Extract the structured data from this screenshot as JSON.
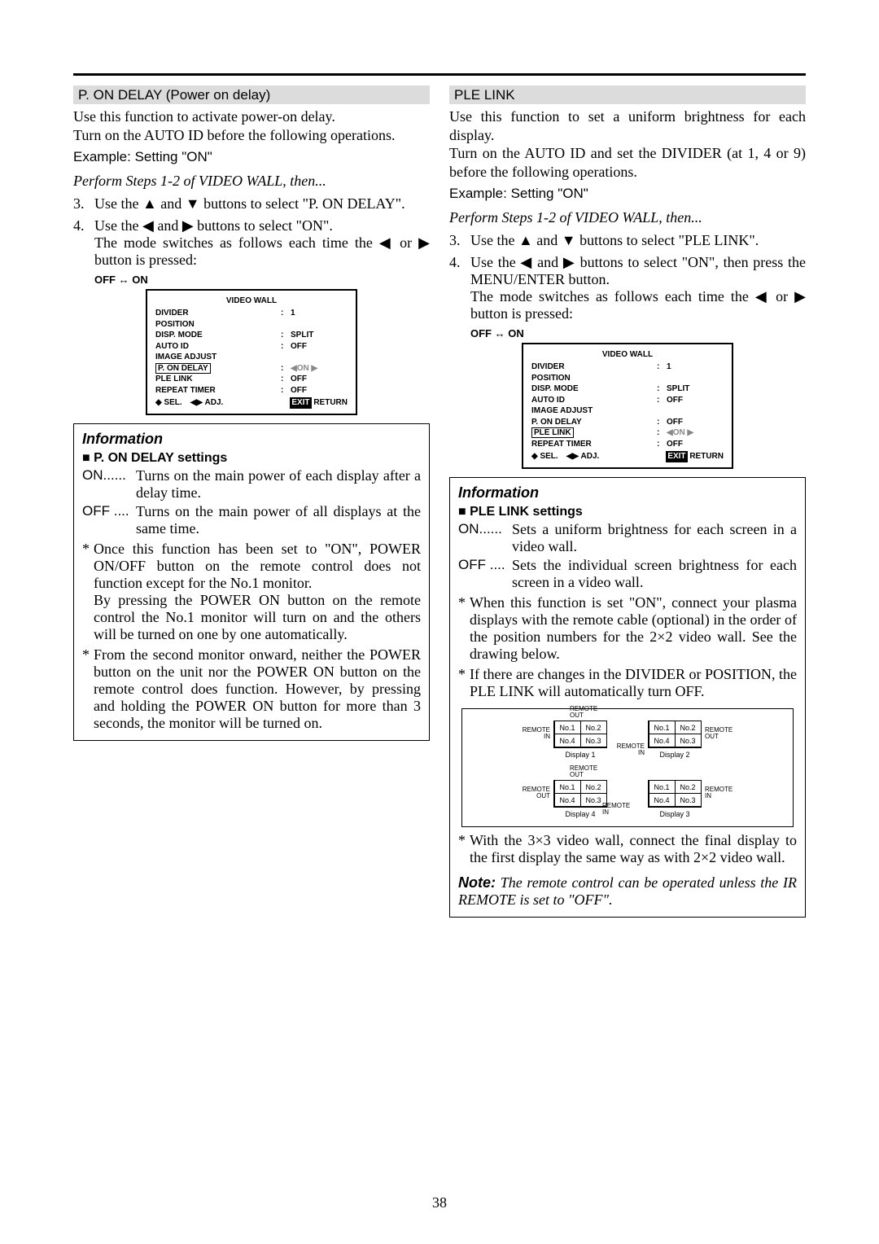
{
  "page_number": "38",
  "left": {
    "header": "P. ON DELAY (Power on delay)",
    "intro1": "Use this function to activate power-on delay.",
    "intro2": "Turn on the AUTO ID before the following operations.",
    "example": "Example: Setting \"ON\"",
    "perform": "Perform  Steps 1-2 of VIDEO WALL, then...",
    "step3": "Use the ▲ and ▼ buttons to select \"P. ON DELAY\".",
    "step4a": "Use the ◀ and ▶ buttons to select \"ON\".",
    "step4b": "The mode switches as follows each time the ◀ or ▶ button is pressed:",
    "toggle": "OFF ↔ ON",
    "info_title": "Information",
    "info_sub": "P. ON DELAY settings",
    "on_def": "Turns on the main power of each display after a delay time.",
    "off_def": "Turns on the main power of all displays at the same time.",
    "star1a": "Once this function has been set to \"ON\", POWER ON/OFF button on the remote control does not function except for the No.1 monitor.",
    "star1b": "By pressing the POWER ON button on the remote control the No.1 monitor will turn on and the others will be turned on one by one automatically.",
    "star2": "From the second monitor onward, neither the POWER button on the unit nor the POWER ON button on the remote control does function. However, by pressing and holding the POWER ON button for more than 3 seconds, the monitor will be turned on."
  },
  "right": {
    "header": "PLE LINK",
    "intro1": "Use this function to set a uniform brightness for each display.",
    "intro2": "Turn on the AUTO ID and set the DIVIDER (at 1, 4 or 9) before the following operations.",
    "example": "Example: Setting \"ON\"",
    "perform": "Perform  Steps 1-2 of VIDEO WALL, then...",
    "step3": "Use the ▲ and ▼ buttons to select \"PLE LINK\".",
    "step4a": "Use the ◀ and ▶ buttons to select \"ON\", then press the MENU/ENTER button.",
    "step4b": "The mode switches as follows each time the ◀ or ▶ button is pressed:",
    "toggle": "OFF ↔ ON",
    "info_title": "Information",
    "info_sub": "PLE LINK settings",
    "on_def": "Sets a uniform brightness for each screen in a video wall.",
    "off_def": "Sets the individual screen brightness for each screen in a video wall.",
    "star1": "When this function is set \"ON\", connect your plasma displays with the remote cable (optional) in the order of the position numbers for the 2×2 video wall. See the drawing below.",
    "star2": "If there are changes in the DIVIDER or POSITION, the PLE LINK will automatically turn OFF.",
    "star3": "With the 3×3 video wall, connect the final display to the first display the same way as with 2×2 video wall.",
    "note": "The remote control can be operated unless the IR REMOTE is set to \"OFF\"."
  },
  "osd": {
    "title": "VIDEO WALL",
    "rows": [
      {
        "k": "DIVIDER",
        "c": ":",
        "v": "1"
      },
      {
        "k": "POSITION",
        "c": "",
        "v": ""
      },
      {
        "k": "DISP. MODE",
        "c": ":",
        "v": "SPLIT"
      },
      {
        "k": "AUTO ID",
        "c": ":",
        "v": "OFF"
      },
      {
        "k": "IMAGE ADJUST",
        "c": "",
        "v": ""
      },
      {
        "k": "P. ON DELAY",
        "c": ":",
        "v": "ON",
        "hl": "left",
        "gray": true
      },
      {
        "k": "PLE LINK",
        "c": ":",
        "v": "OFF"
      },
      {
        "k": "REPEAT TIMER",
        "c": ":",
        "v": "OFF"
      }
    ],
    "rows2": [
      {
        "k": "DIVIDER",
        "c": ":",
        "v": "1"
      },
      {
        "k": "POSITION",
        "c": "",
        "v": ""
      },
      {
        "k": "DISP. MODE",
        "c": ":",
        "v": "SPLIT"
      },
      {
        "k": "AUTO ID",
        "c": ":",
        "v": "OFF"
      },
      {
        "k": "IMAGE ADJUST",
        "c": "",
        "v": ""
      },
      {
        "k": "P. ON DELAY",
        "c": ":",
        "v": "OFF"
      },
      {
        "k": "PLE LINK",
        "c": ":",
        "v": "ON",
        "hl": "left",
        "gray": true
      },
      {
        "k": "REPEAT TIMER",
        "c": ":",
        "v": "OFF"
      }
    ],
    "foot_sel": "SEL.",
    "foot_adj": "ADJ.",
    "foot_exit": "EXIT",
    "foot_ret": "RETURN"
  },
  "diagram": {
    "cells": [
      "No.1",
      "No.2",
      "No.4",
      "No.3"
    ],
    "labels": [
      "Display 1",
      "Display 2",
      "Display 4",
      "Display 3"
    ],
    "remote_in": "REMOTE\nIN",
    "remote_out": "REMOTE\nOUT"
  }
}
